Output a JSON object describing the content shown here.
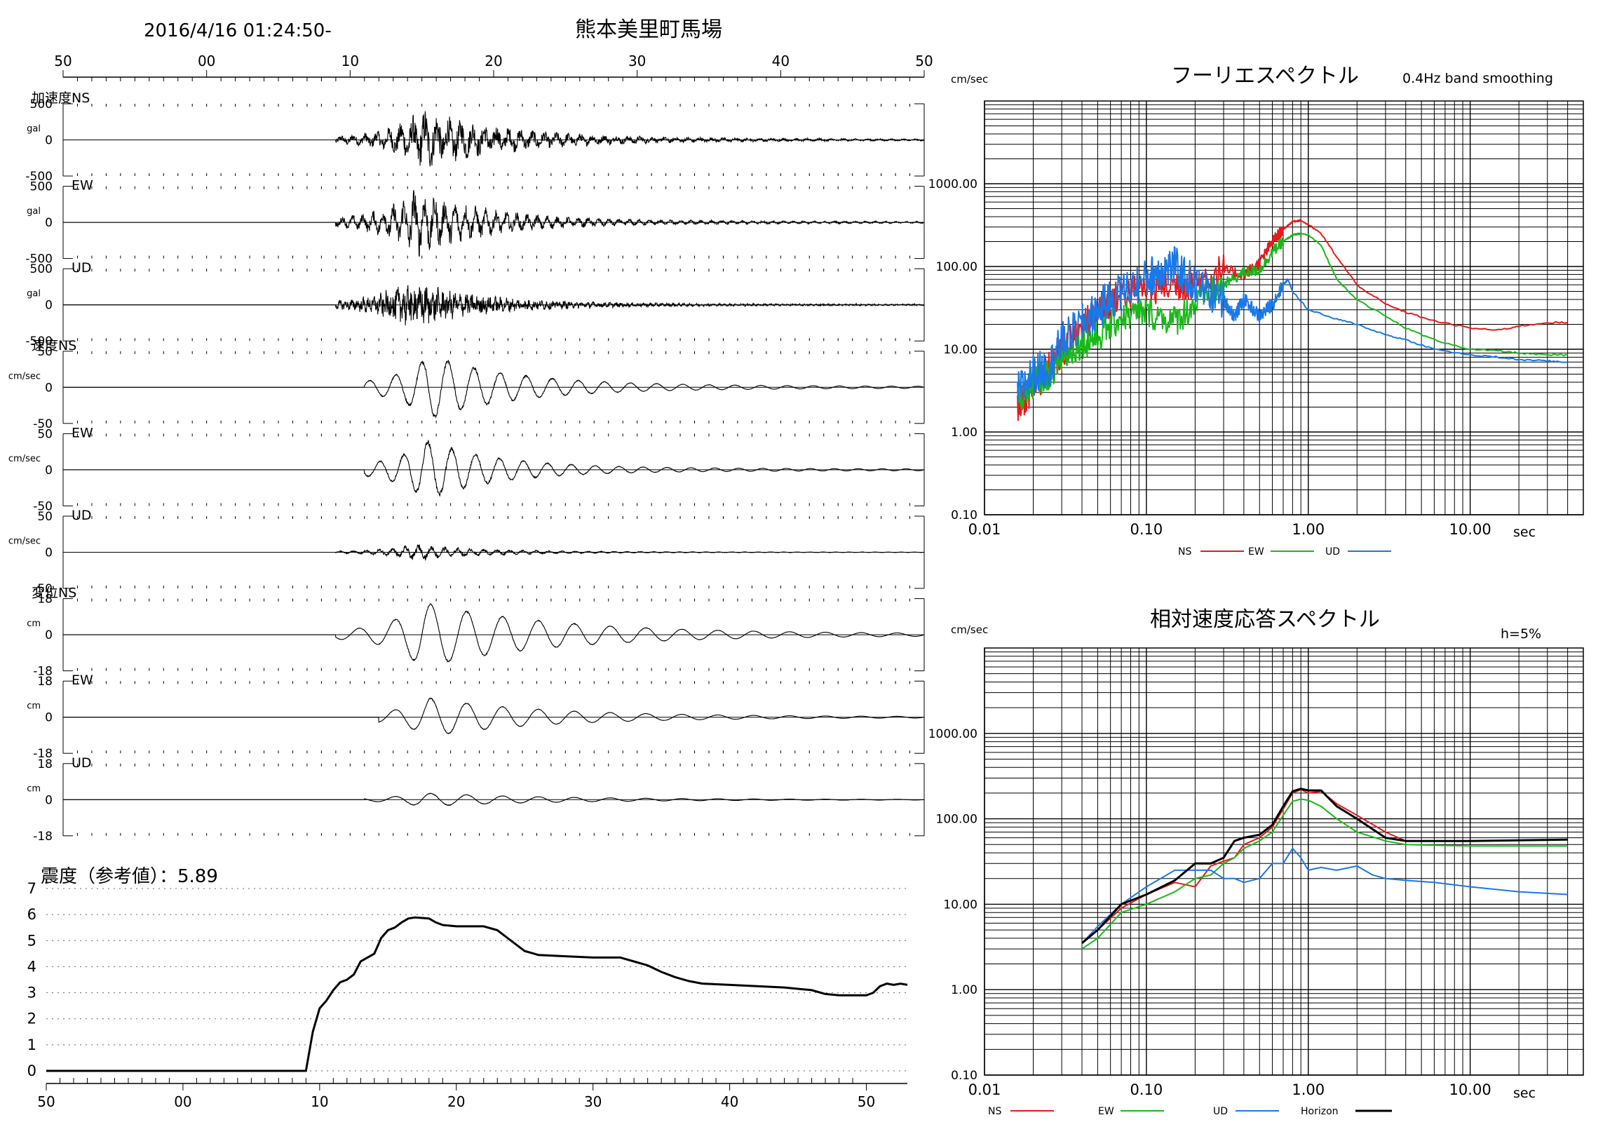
{
  "header": {
    "timestamp": "2016/4/16 01:24:50-",
    "station": "熊本美里町馬場"
  },
  "waveforms": {
    "time_ticks": [
      "50",
      "00",
      "10",
      "20",
      "30",
      "40",
      "50"
    ],
    "start_seconds": 50,
    "span_seconds": 60,
    "signal_onset_seconds": 69,
    "channels": [
      {
        "group_label": "加速度NS",
        "comp": "",
        "unit": "gal",
        "max_label": "500",
        "min_label": "-500",
        "amp": 0.85,
        "onset": 69,
        "peak_t": 75,
        "decay": 6,
        "freq": 1.2,
        "noise": 0.55
      },
      {
        "group_label": "",
        "comp": "EW",
        "unit": "gal",
        "max_label": "500",
        "min_label": "-500",
        "amp": 0.95,
        "onset": 69,
        "peak_t": 74.5,
        "decay": 5,
        "freq": 1.4,
        "noise": 0.45
      },
      {
        "group_label": "",
        "comp": "UD",
        "unit": "gal",
        "max_label": "500",
        "min_label": "-500",
        "amp": 0.7,
        "onset": 69,
        "peak_t": 74,
        "decay": 5,
        "freq": 2.5,
        "noise": 0.7
      },
      {
        "group_label": "速度NS",
        "comp": "",
        "unit": "cm/sec",
        "max_label": "50",
        "min_label": "-50",
        "amp": 0.85,
        "onset": 71,
        "peak_t": 75.5,
        "decay": 6,
        "freq": 0.55,
        "noise": 0.06
      },
      {
        "group_label": "",
        "comp": "EW",
        "unit": "cm/sec",
        "max_label": "50",
        "min_label": "-50",
        "amp": 0.8,
        "onset": 71,
        "peak_t": 75.3,
        "decay": 5,
        "freq": 0.6,
        "noise": 0.08
      },
      {
        "group_label": "",
        "comp": "UD",
        "unit": "cm/sec",
        "max_label": "50",
        "min_label": "-50",
        "amp": 0.22,
        "onset": 69,
        "peak_t": 74.5,
        "decay": 5,
        "freq": 1.1,
        "noise": 0.35
      },
      {
        "group_label": "変位NS",
        "comp": "",
        "unit": "cm",
        "max_label": "18",
        "min_label": "-18",
        "amp": 0.85,
        "onset": 69,
        "peak_t": 75,
        "decay": 9,
        "freq": 0.4,
        "noise": 0.03
      },
      {
        "group_label": "",
        "comp": "EW",
        "unit": "cm",
        "max_label": "18",
        "min_label": "-18",
        "amp": 0.5,
        "onset": 72,
        "peak_t": 75.5,
        "decay": 8,
        "freq": 0.4,
        "noise": 0.03
      },
      {
        "group_label": "",
        "comp": "UD",
        "unit": "cm",
        "max_label": "18",
        "min_label": "-18",
        "amp": 0.18,
        "onset": 71,
        "peak_t": 75,
        "decay": 9,
        "freq": 0.4,
        "noise": 0.05
      }
    ]
  },
  "intensity": {
    "title": "震度（参考値）：5.89",
    "y_ticks": [
      "7",
      "6",
      "5",
      "4",
      "3",
      "2",
      "1",
      "0"
    ],
    "x_ticks": [
      "50",
      "00",
      "10",
      "20",
      "30",
      "40",
      "50"
    ],
    "points": [
      [
        50,
        0
      ],
      [
        69,
        0
      ],
      [
        69.5,
        1.5
      ],
      [
        70,
        2.4
      ],
      [
        70.5,
        2.7
      ],
      [
        71,
        3.1
      ],
      [
        71.5,
        3.4
      ],
      [
        72,
        3.5
      ],
      [
        72.5,
        3.7
      ],
      [
        73,
        4.2
      ],
      [
        73.5,
        4.35
      ],
      [
        74,
        4.5
      ],
      [
        74.5,
        5.1
      ],
      [
        75,
        5.4
      ],
      [
        75.5,
        5.5
      ],
      [
        76,
        5.7
      ],
      [
        76.5,
        5.85
      ],
      [
        77,
        5.89
      ],
      [
        78,
        5.85
      ],
      [
        78.5,
        5.7
      ],
      [
        79,
        5.6
      ],
      [
        80,
        5.55
      ],
      [
        82,
        5.55
      ],
      [
        83,
        5.4
      ],
      [
        84,
        5.0
      ],
      [
        85,
        4.6
      ],
      [
        86,
        4.45
      ],
      [
        88,
        4.4
      ],
      [
        90,
        4.35
      ],
      [
        92,
        4.35
      ],
      [
        93,
        4.2
      ],
      [
        94,
        4.05
      ],
      [
        95,
        3.8
      ],
      [
        96,
        3.6
      ],
      [
        97,
        3.45
      ],
      [
        98,
        3.35
      ],
      [
        100,
        3.3
      ],
      [
        102,
        3.25
      ],
      [
        104,
        3.2
      ],
      [
        106,
        3.1
      ],
      [
        107,
        2.95
      ],
      [
        108,
        2.9
      ],
      [
        110,
        2.9
      ],
      [
        110.5,
        3.0
      ],
      [
        111,
        3.25
      ],
      [
        111.5,
        3.35
      ],
      [
        112,
        3.3
      ],
      [
        112.5,
        3.35
      ],
      [
        113,
        3.3
      ]
    ]
  },
  "fourier": {
    "title": "フーリエスペクトル",
    "note": "0.4Hz band smoothing",
    "y_unit": "cm/sec",
    "x_unit": "sec",
    "x_range": [
      0.01,
      50
    ],
    "y_range": [
      0.1,
      10000
    ],
    "x_tick_labels": [
      {
        "v": 0.01,
        "t": "0.01"
      },
      {
        "v": 0.1,
        "t": "0.10"
      },
      {
        "v": 1,
        "t": "1.00"
      },
      {
        "v": 10,
        "t": "10.00"
      }
    ],
    "y_tick_labels": [
      {
        "v": 0.1,
        "t": "0.10"
      },
      {
        "v": 1,
        "t": "1.00"
      },
      {
        "v": 10,
        "t": "10.00"
      },
      {
        "v": 100,
        "t": "100.00"
      },
      {
        "v": 1000,
        "t": "1000.00"
      }
    ],
    "legend": [
      {
        "name": "NS",
        "color": "#e8191a"
      },
      {
        "name": "EW",
        "color": "#19b819"
      },
      {
        "name": "UD",
        "color": "#1a78e8"
      }
    ],
    "series": [
      {
        "name": "NS",
        "color": "#e8191a",
        "jitter": 0.6,
        "points": [
          [
            0.016,
            2
          ],
          [
            0.02,
            3.5
          ],
          [
            0.025,
            6
          ],
          [
            0.03,
            9
          ],
          [
            0.04,
            18
          ],
          [
            0.05,
            30
          ],
          [
            0.07,
            45
          ],
          [
            0.1,
            55
          ],
          [
            0.15,
            60
          ],
          [
            0.2,
            65
          ],
          [
            0.3,
            90
          ],
          [
            0.4,
            80
          ],
          [
            0.5,
            110
          ],
          [
            0.6,
            200
          ],
          [
            0.7,
            280
          ],
          [
            0.8,
            350
          ],
          [
            0.9,
            360
          ],
          [
            1.0,
            320
          ],
          [
            1.2,
            250
          ],
          [
            1.5,
            130
          ],
          [
            2,
            60
          ],
          [
            3,
            35
          ],
          [
            4,
            28
          ],
          [
            6,
            22
          ],
          [
            10,
            18
          ],
          [
            15,
            17
          ],
          [
            20,
            19
          ],
          [
            30,
            21
          ],
          [
            40,
            21
          ]
        ]
      },
      {
        "name": "EW",
        "color": "#19b819",
        "jitter": 0.55,
        "points": [
          [
            0.016,
            2.5
          ],
          [
            0.02,
            4
          ],
          [
            0.025,
            5
          ],
          [
            0.03,
            8
          ],
          [
            0.04,
            12
          ],
          [
            0.05,
            14
          ],
          [
            0.07,
            25
          ],
          [
            0.1,
            28
          ],
          [
            0.15,
            22
          ],
          [
            0.2,
            35
          ],
          [
            0.3,
            60
          ],
          [
            0.4,
            85
          ],
          [
            0.5,
            90
          ],
          [
            0.6,
            150
          ],
          [
            0.7,
            200
          ],
          [
            0.8,
            240
          ],
          [
            0.9,
            250
          ],
          [
            1.0,
            240
          ],
          [
            1.2,
            180
          ],
          [
            1.5,
            70
          ],
          [
            2,
            40
          ],
          [
            3,
            25
          ],
          [
            4,
            18
          ],
          [
            6,
            13
          ],
          [
            10,
            10
          ],
          [
            15,
            9.5
          ],
          [
            20,
            9
          ],
          [
            30,
            8.5
          ],
          [
            40,
            8.5
          ]
        ]
      },
      {
        "name": "UD",
        "color": "#1a78e8",
        "jitter": 0.7,
        "points": [
          [
            0.016,
            3
          ],
          [
            0.02,
            5
          ],
          [
            0.025,
            6
          ],
          [
            0.03,
            12
          ],
          [
            0.04,
            20
          ],
          [
            0.05,
            30
          ],
          [
            0.07,
            50
          ],
          [
            0.1,
            70
          ],
          [
            0.12,
            90
          ],
          [
            0.15,
            100
          ],
          [
            0.2,
            60
          ],
          [
            0.3,
            40
          ],
          [
            0.35,
            25
          ],
          [
            0.4,
            40
          ],
          [
            0.5,
            25
          ],
          [
            0.6,
            35
          ],
          [
            0.7,
            60
          ],
          [
            0.75,
            70
          ],
          [
            0.8,
            50
          ],
          [
            1.0,
            30
          ],
          [
            1.5,
            23
          ],
          [
            2,
            20
          ],
          [
            3,
            15
          ],
          [
            4,
            13
          ],
          [
            6,
            10
          ],
          [
            10,
            8.5
          ],
          [
            15,
            8
          ],
          [
            20,
            7.5
          ],
          [
            30,
            7.2
          ],
          [
            40,
            7
          ]
        ]
      }
    ]
  },
  "response": {
    "title": "相対速度応答スペクトル",
    "note": "h=5%",
    "y_unit": "cm/sec",
    "x_unit": "sec",
    "x_range": [
      0.01,
      50
    ],
    "y_range": [
      0.1,
      10000
    ],
    "x_tick_labels": [
      {
        "v": 0.01,
        "t": "0.01"
      },
      {
        "v": 0.1,
        "t": "0.10"
      },
      {
        "v": 1,
        "t": "1.00"
      },
      {
        "v": 10,
        "t": "10.00"
      }
    ],
    "y_tick_labels": [
      {
        "v": 0.1,
        "t": "0.10"
      },
      {
        "v": 1,
        "t": "1.00"
      },
      {
        "v": 10,
        "t": "10.00"
      },
      {
        "v": 100,
        "t": "100.00"
      },
      {
        "v": 1000,
        "t": "1000.00"
      }
    ],
    "legend": [
      {
        "name": "NS",
        "color": "#e8191a"
      },
      {
        "name": "EW",
        "color": "#19b819"
      },
      {
        "name": "UD",
        "color": "#1a78e8"
      },
      {
        "name": "Horizon",
        "color": "#000000"
      }
    ],
    "series": [
      {
        "name": "NS",
        "color": "#e8191a",
        "width": 2,
        "points": [
          [
            0.04,
            3.5
          ],
          [
            0.05,
            5
          ],
          [
            0.07,
            9
          ],
          [
            0.1,
            13
          ],
          [
            0.15,
            18
          ],
          [
            0.2,
            16
          ],
          [
            0.25,
            28
          ],
          [
            0.3,
            32
          ],
          [
            0.35,
            35
          ],
          [
            0.4,
            50
          ],
          [
            0.5,
            60
          ],
          [
            0.6,
            80
          ],
          [
            0.7,
            130
          ],
          [
            0.8,
            200
          ],
          [
            0.9,
            220
          ],
          [
            1.0,
            200
          ],
          [
            1.2,
            210
          ],
          [
            1.5,
            150
          ],
          [
            2,
            110
          ],
          [
            3,
            70
          ],
          [
            4,
            55
          ],
          [
            6,
            55
          ],
          [
            10,
            55
          ],
          [
            20,
            56
          ],
          [
            40,
            57
          ]
        ]
      },
      {
        "name": "EW",
        "color": "#19b819",
        "width": 2,
        "points": [
          [
            0.04,
            3
          ],
          [
            0.05,
            4
          ],
          [
            0.07,
            8
          ],
          [
            0.1,
            10
          ],
          [
            0.15,
            14
          ],
          [
            0.2,
            20
          ],
          [
            0.25,
            22
          ],
          [
            0.3,
            30
          ],
          [
            0.35,
            35
          ],
          [
            0.4,
            45
          ],
          [
            0.5,
            55
          ],
          [
            0.6,
            70
          ],
          [
            0.7,
            110
          ],
          [
            0.8,
            160
          ],
          [
            0.9,
            170
          ],
          [
            1.0,
            165
          ],
          [
            1.2,
            140
          ],
          [
            1.5,
            100
          ],
          [
            2,
            70
          ],
          [
            3,
            55
          ],
          [
            4,
            50
          ],
          [
            6,
            49
          ],
          [
            10,
            48
          ],
          [
            20,
            48
          ],
          [
            40,
            48
          ]
        ]
      },
      {
        "name": "UD",
        "color": "#1a78e8",
        "width": 2,
        "points": [
          [
            0.04,
            3.5
          ],
          [
            0.05,
            5.5
          ],
          [
            0.07,
            10
          ],
          [
            0.1,
            16
          ],
          [
            0.15,
            25
          ],
          [
            0.2,
            25
          ],
          [
            0.25,
            25
          ],
          [
            0.3,
            20
          ],
          [
            0.35,
            20
          ],
          [
            0.4,
            18
          ],
          [
            0.5,
            20
          ],
          [
            0.6,
            30
          ],
          [
            0.7,
            30
          ],
          [
            0.8,
            45
          ],
          [
            0.9,
            35
          ],
          [
            1.0,
            25
          ],
          [
            1.2,
            27
          ],
          [
            1.5,
            25
          ],
          [
            2,
            28
          ],
          [
            2.5,
            22
          ],
          [
            3,
            20
          ],
          [
            4,
            19
          ],
          [
            6,
            18
          ],
          [
            10,
            16
          ],
          [
            20,
            14
          ],
          [
            40,
            13
          ]
        ]
      },
      {
        "name": "Horizon",
        "color": "#000000",
        "width": 3,
        "points": [
          [
            0.04,
            3.5
          ],
          [
            0.05,
            5
          ],
          [
            0.07,
            10
          ],
          [
            0.1,
            13
          ],
          [
            0.15,
            19
          ],
          [
            0.2,
            30
          ],
          [
            0.25,
            30
          ],
          [
            0.3,
            35
          ],
          [
            0.35,
            55
          ],
          [
            0.4,
            60
          ],
          [
            0.5,
            65
          ],
          [
            0.6,
            85
          ],
          [
            0.7,
            140
          ],
          [
            0.8,
            210
          ],
          [
            0.9,
            225
          ],
          [
            1.0,
            215
          ],
          [
            1.2,
            215
          ],
          [
            1.5,
            140
          ],
          [
            2,
            100
          ],
          [
            3,
            60
          ],
          [
            4,
            55
          ],
          [
            6,
            55
          ],
          [
            10,
            55
          ],
          [
            20,
            56
          ],
          [
            40,
            57
          ]
        ]
      }
    ]
  }
}
